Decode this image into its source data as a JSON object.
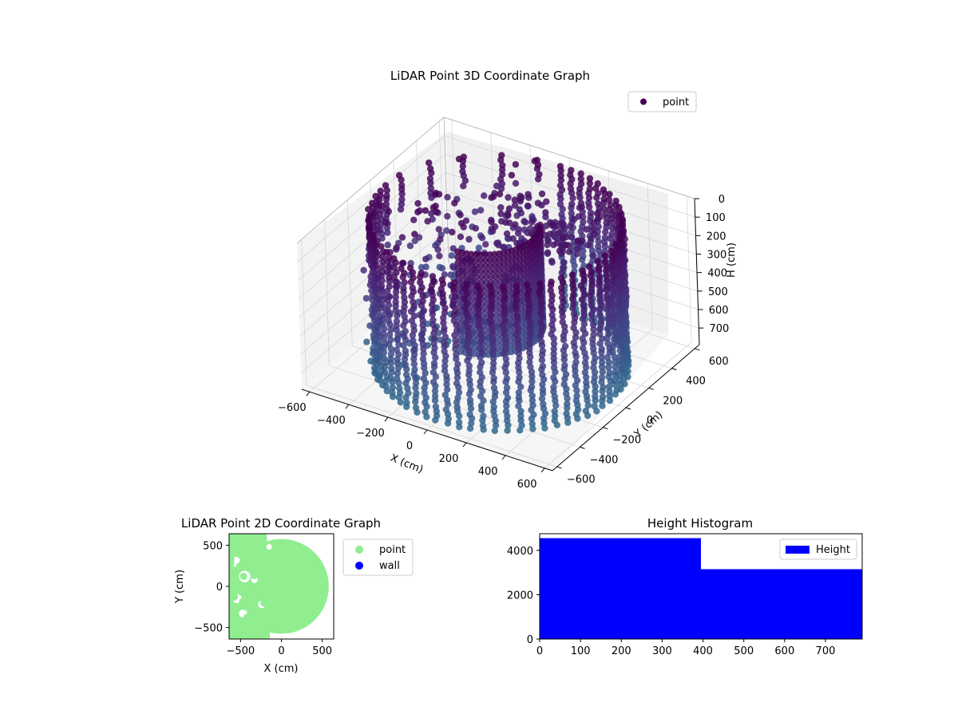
{
  "chart_data": [
    {
      "type": "scatter3d",
      "title": "LiDAR Point 3D Coordinate Graph",
      "xlabel": "X (cm)",
      "ylabel": "Y (cm)",
      "zlabel": "H (cm)",
      "xticks": [
        -600,
        -400,
        -200,
        0,
        200,
        400,
        600
      ],
      "yticks": [
        -600,
        -400,
        -200,
        0,
        200,
        400,
        600
      ],
      "zticks": [
        0,
        100,
        200,
        300,
        400,
        500,
        600,
        700
      ],
      "xlim": [
        -640,
        640
      ],
      "ylim": [
        -640,
        640
      ],
      "zlim": [
        0,
        790
      ],
      "z_inverted": true,
      "legend": {
        "placement": "top-right",
        "entries": [
          {
            "label": "point",
            "color": "#440154"
          }
        ]
      },
      "colormap": "viridis",
      "series": [
        {
          "name": "point",
          "description_shape": "cylindrical wall of radius ~550 cm with scattered interior points, heights 0–790 cm"
        }
      ],
      "grid": true
    },
    {
      "type": "scatter",
      "title": "LiDAR Point 2D Coordinate Graph",
      "xlabel": "X (cm)",
      "ylabel": "Y (cm)",
      "xticks": [
        -500,
        0,
        500
      ],
      "yticks": [
        -500,
        0,
        500
      ],
      "xlim": [
        -640,
        640
      ],
      "ylim": [
        -640,
        640
      ],
      "legend": {
        "placement": "outside-right",
        "entries": [
          {
            "label": "point",
            "color": "#90ee90"
          },
          {
            "label": "wall",
            "color": "#0000ff"
          }
        ]
      },
      "grid": false
    },
    {
      "type": "bar",
      "title": "Height Histogram",
      "xticks": [
        0,
        100,
        200,
        300,
        400,
        500,
        600,
        700
      ],
      "yticks": [
        0,
        2000,
        4000
      ],
      "xlim": [
        0,
        790
      ],
      "ylim": [
        0,
        4750
      ],
      "bins": [
        {
          "start": 0,
          "end": 395,
          "count": 4550
        },
        {
          "start": 395,
          "end": 790,
          "count": 3150
        }
      ],
      "color": "#0000ff",
      "legend": {
        "placement": "top-right",
        "entries": [
          {
            "label": "Height",
            "color": "#0000ff"
          }
        ]
      },
      "grid": false
    }
  ]
}
